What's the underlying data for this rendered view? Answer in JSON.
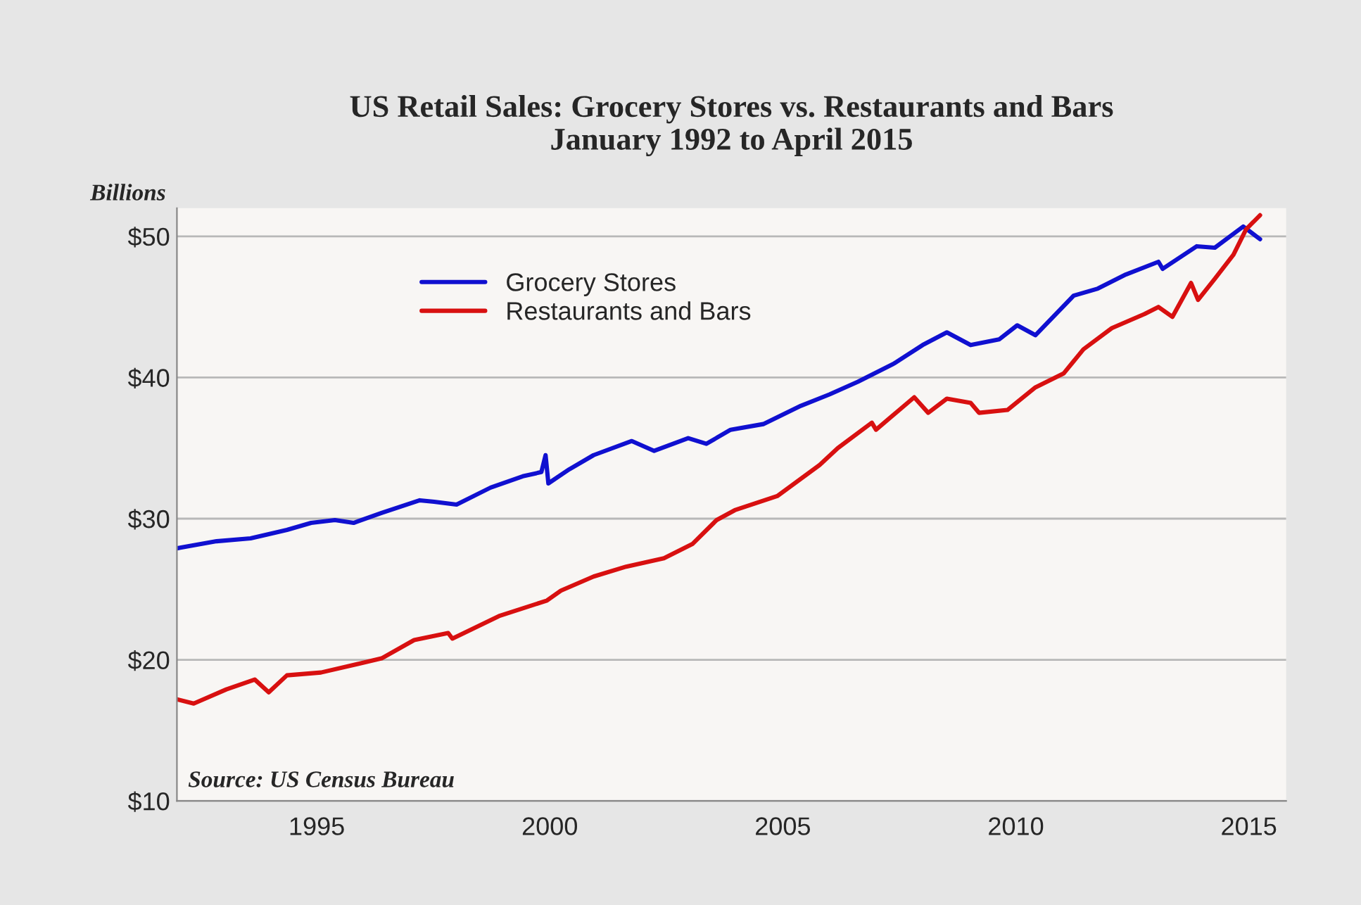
{
  "chart_data": {
    "type": "line",
    "title": "US Retail Sales: Grocery Stores vs. Restaurants and Bars\nJanuary 1992 to April 2015",
    "ylabel": "Billions",
    "series": [
      {
        "name": "Grocery Stores",
        "color": "#1010d0",
        "x": [
          1992.0,
          1992.85,
          1993.58,
          1994.36,
          1994.88,
          1995.39,
          1995.79,
          1996.39,
          1997.21,
          1997.52,
          1998.0,
          1998.73,
          1999.42,
          1999.82,
          1999.91,
          1999.97,
          2000.42,
          2000.94,
          2001.76,
          2002.24,
          2002.97,
          2003.36,
          2003.88,
          2004.58,
          2005.39,
          2006.0,
          2006.61,
          2007.39,
          2008.0,
          2008.52,
          2009.03,
          2009.64,
          2010.03,
          2010.42,
          2011.24,
          2011.76,
          2012.36,
          2013.06,
          2013.15,
          2013.88,
          2014.27,
          2014.88,
          2015.24
        ],
        "values": [
          27.9,
          28.4,
          28.6,
          29.2,
          29.7,
          29.9,
          29.7,
          30.4,
          31.3,
          31.2,
          31.0,
          32.2,
          33.0,
          33.3,
          34.5,
          32.5,
          33.5,
          34.5,
          35.5,
          34.8,
          35.7,
          35.3,
          36.3,
          36.7,
          38.0,
          38.8,
          39.7,
          41.0,
          42.3,
          43.2,
          42.3,
          42.7,
          43.7,
          43.0,
          45.8,
          46.3,
          47.3,
          48.2,
          47.7,
          49.3,
          49.2,
          50.7,
          49.8
        ]
      },
      {
        "name": "Restaurants and Bars",
        "color": "#d81010",
        "x": [
          1992.0,
          1992.36,
          1993.06,
          1993.67,
          1993.97,
          1994.36,
          1995.09,
          1995.88,
          1996.39,
          1997.09,
          1997.82,
          1997.91,
          1998.91,
          1999.94,
          2000.24,
          2000.94,
          2001.64,
          2002.45,
          2003.06,
          2003.58,
          2003.97,
          2004.88,
          2005.79,
          2006.18,
          2006.91,
          2007.0,
          2007.82,
          2008.12,
          2008.52,
          2009.03,
          2009.21,
          2009.82,
          2010.42,
          2011.03,
          2011.45,
          2012.06,
          2012.76,
          2013.06,
          2013.36,
          2013.76,
          2013.91,
          2014.27,
          2014.67,
          2014.94,
          2015.24
        ],
        "values": [
          17.2,
          16.9,
          17.9,
          18.6,
          17.7,
          18.9,
          19.1,
          19.7,
          20.1,
          21.4,
          21.9,
          21.5,
          23.1,
          24.2,
          24.9,
          25.9,
          26.6,
          27.2,
          28.2,
          29.9,
          30.6,
          31.6,
          33.8,
          35.0,
          36.8,
          36.3,
          38.6,
          37.5,
          38.5,
          38.2,
          37.5,
          37.7,
          39.3,
          40.3,
          42.0,
          43.5,
          44.5,
          45.0,
          44.3,
          46.7,
          45.5,
          47.0,
          48.7,
          50.5,
          51.5
        ]
      }
    ],
    "xlim": [
      1992,
      2015.8
    ],
    "xticks": [
      1995,
      2000,
      2005,
      2010,
      2015
    ],
    "ylim": [
      10,
      52
    ],
    "yticks": [
      {
        "value": 10,
        "label": "$10"
      },
      {
        "value": 20,
        "label": "$20"
      },
      {
        "value": 30,
        "label": "$30"
      },
      {
        "value": 40,
        "label": "$40"
      },
      {
        "value": 50,
        "label": "$50"
      }
    ],
    "grid": "y",
    "legend": "top left",
    "line_style": "solid",
    "marker": "none",
    "annotations": [
      "Source: US Census Bureau"
    ]
  }
}
